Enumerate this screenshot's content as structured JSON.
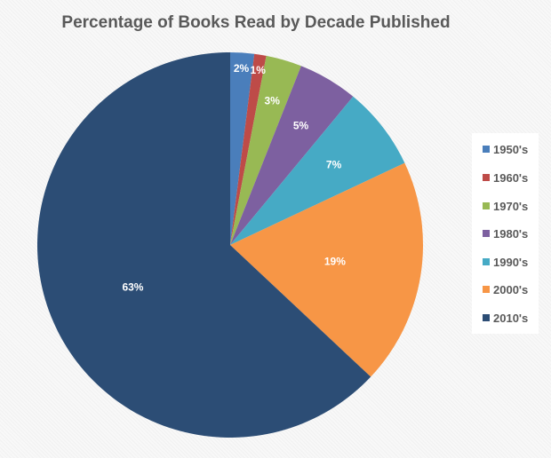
{
  "chart_data": {
    "type": "pie",
    "title": "Percentage of Books Read by Decade Published",
    "categories": [
      "1950's",
      "1960's",
      "1970's",
      "1980's",
      "1990's",
      "2000's",
      "2010's"
    ],
    "values": [
      2,
      1,
      3,
      5,
      7,
      19,
      63
    ],
    "labels": [
      "2%",
      "1%",
      "3%",
      "5%",
      "7%",
      "19%",
      "63%"
    ],
    "colors": [
      "#4a7ebb",
      "#be4b48",
      "#98b954",
      "#7d60a0",
      "#46aac5",
      "#f79646",
      "#2c4d75"
    ],
    "legend_position": "right",
    "start_angle": "12 o'clock, clockwise"
  },
  "legend": {
    "items": [
      "1950's",
      "1960's",
      "1970's",
      "1980's",
      "1990's",
      "2000's",
      "2010's"
    ]
  }
}
